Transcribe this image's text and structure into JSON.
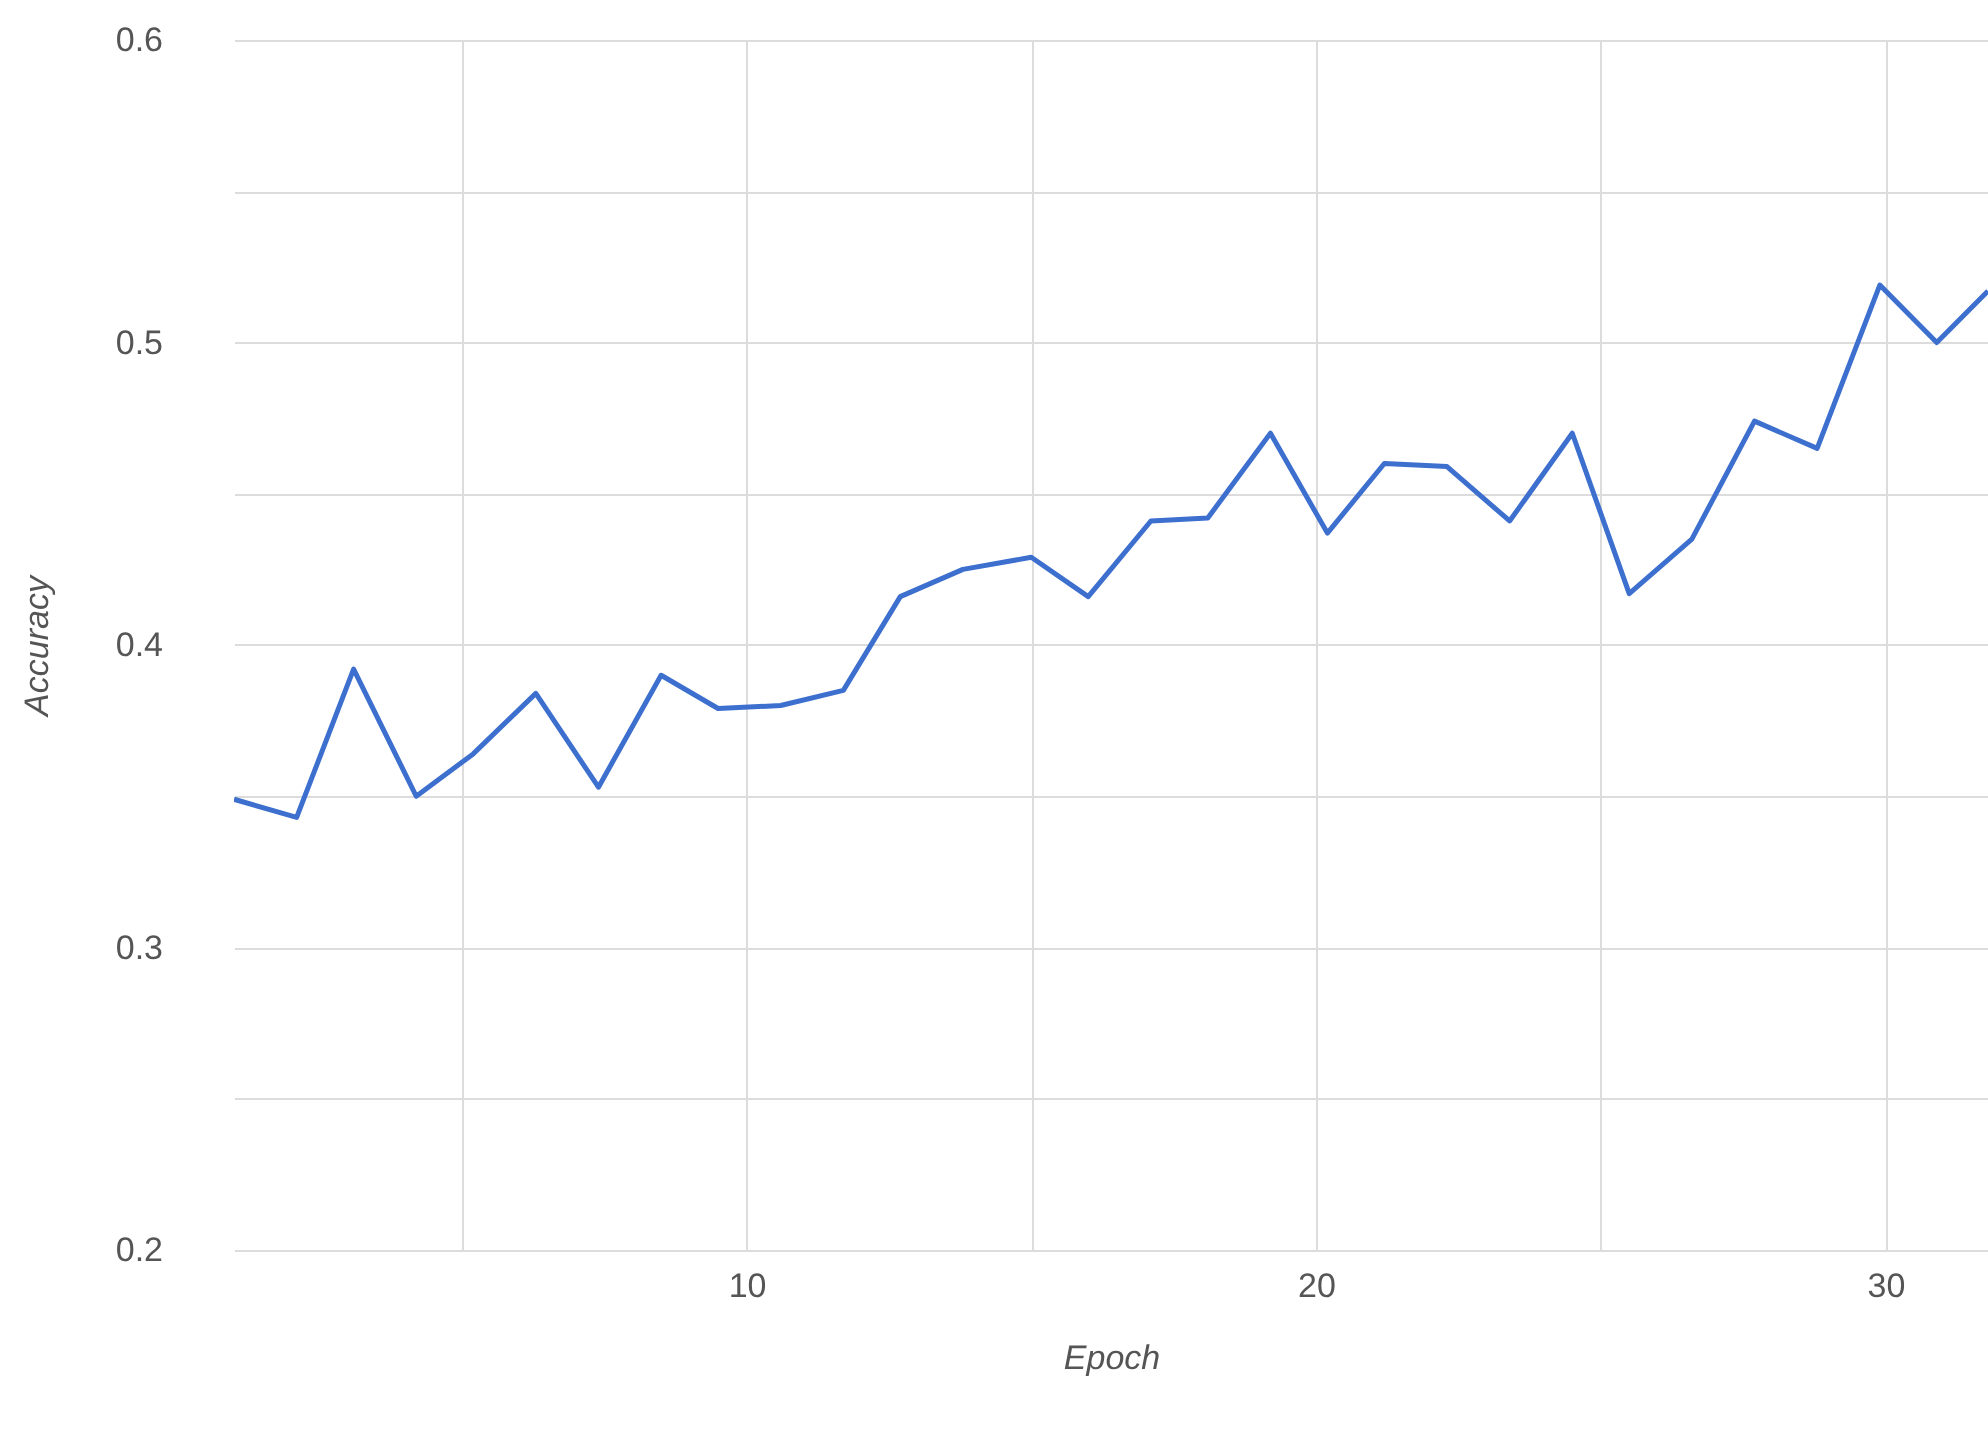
{
  "chart_data": {
    "type": "line",
    "xlabel": "Epoch",
    "ylabel": "Accuracy",
    "x": [
      1.0,
      2.1,
      3.1,
      4.2,
      5.2,
      6.3,
      7.4,
      8.5,
      9.5,
      10.6,
      11.7,
      12.7,
      13.8,
      15.0,
      16.0,
      17.1,
      18.1,
      19.2,
      20.2,
      21.2,
      22.3,
      23.4,
      24.5,
      25.5,
      26.6,
      27.7,
      28.8,
      29.9,
      30.9,
      31.8
    ],
    "series": [
      {
        "color": "#3d6fcf",
        "values": [
          0.349,
          0.343,
          0.392,
          0.35,
          0.364,
          0.384,
          0.353,
          0.39,
          0.379,
          0.38,
          0.385,
          0.416,
          0.425,
          0.429,
          0.416,
          0.441,
          0.442,
          0.47,
          0.437,
          0.46,
          0.459,
          0.441,
          0.47,
          0.417,
          0.435,
          0.474,
          0.465,
          0.519,
          0.5,
          0.517
        ]
      }
    ],
    "xlim": [
      1,
      31.8
    ],
    "xticks": [
      {
        "value": 5,
        "label": null
      },
      10,
      {
        "value": 15,
        "label": null
      },
      20,
      {
        "value": 25,
        "label": null
      },
      30
    ],
    "ylim": [
      0.2,
      0.6
    ],
    "yticks": [
      0.2,
      {
        "value": 0.25,
        "label": null
      },
      0.3,
      {
        "value": 0.35,
        "label": null
      },
      0.4,
      {
        "value": 0.45,
        "label": null
      },
      0.5,
      {
        "value": 0.55,
        "label": null
      },
      0.6
    ],
    "grid": true,
    "legend": false,
    "marker": "none",
    "line_style": "solid"
  }
}
